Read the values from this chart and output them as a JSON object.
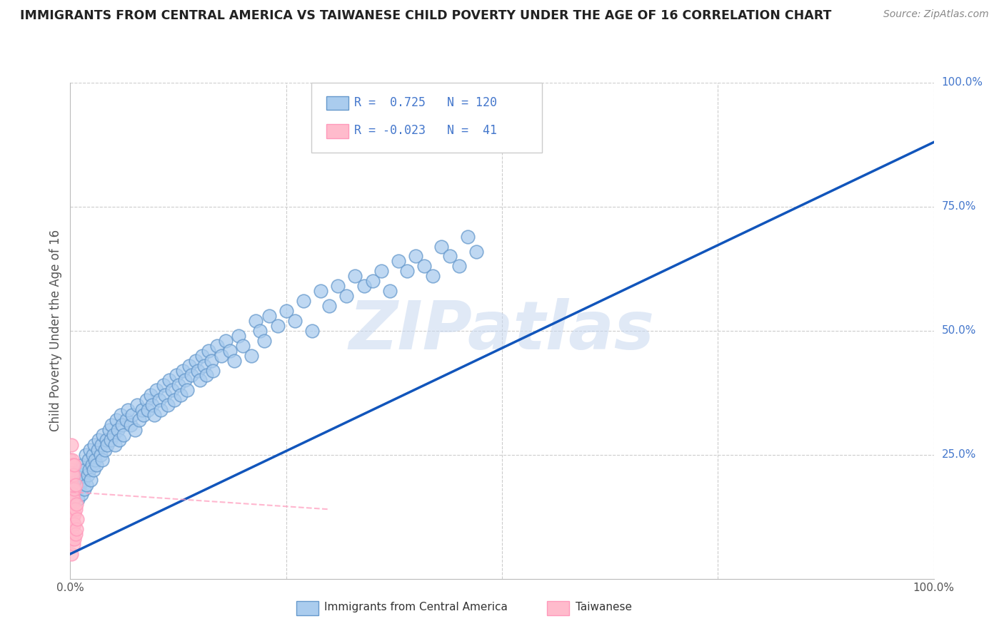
{
  "title": "IMMIGRANTS FROM CENTRAL AMERICA VS TAIWANESE CHILD POVERTY UNDER THE AGE OF 16 CORRELATION CHART",
  "source": "Source: ZipAtlas.com",
  "ylabel": "Child Poverty Under the Age of 16",
  "watermark": "ZIPatlas",
  "blue_color": "#6699cc",
  "pink_color": "#ff99bb",
  "blue_fill": "#aaccee",
  "pink_fill": "#ffbbcc",
  "blue_line_color": "#1155bb",
  "pink_line_color": "#ff99bb",
  "tick_label_color": "#4477cc",
  "background_color": "#ffffff",
  "grid_color": "#cccccc",
  "blue_scatter": {
    "x": [
      0.005,
      0.007,
      0.009,
      0.01,
      0.011,
      0.012,
      0.013,
      0.014,
      0.015,
      0.016,
      0.017,
      0.018,
      0.019,
      0.02,
      0.021,
      0.022,
      0.023,
      0.024,
      0.025,
      0.026,
      0.027,
      0.028,
      0.029,
      0.03,
      0.032,
      0.033,
      0.035,
      0.036,
      0.037,
      0.038,
      0.04,
      0.042,
      0.043,
      0.045,
      0.047,
      0.048,
      0.05,
      0.052,
      0.053,
      0.055,
      0.057,
      0.058,
      0.06,
      0.062,
      0.065,
      0.067,
      0.07,
      0.072,
      0.075,
      0.077,
      0.08,
      0.083,
      0.085,
      0.088,
      0.09,
      0.093,
      0.095,
      0.097,
      0.1,
      0.103,
      0.105,
      0.108,
      0.11,
      0.113,
      0.115,
      0.118,
      0.12,
      0.123,
      0.125,
      0.128,
      0.13,
      0.133,
      0.135,
      0.138,
      0.14,
      0.145,
      0.148,
      0.15,
      0.153,
      0.155,
      0.158,
      0.16,
      0.163,
      0.165,
      0.17,
      0.175,
      0.18,
      0.185,
      0.19,
      0.195,
      0.2,
      0.21,
      0.215,
      0.22,
      0.225,
      0.23,
      0.24,
      0.25,
      0.26,
      0.27,
      0.28,
      0.29,
      0.3,
      0.31,
      0.32,
      0.33,
      0.34,
      0.35,
      0.36,
      0.37,
      0.38,
      0.39,
      0.4,
      0.41,
      0.42,
      0.43,
      0.44,
      0.45,
      0.46,
      0.47
    ],
    "y": [
      0.18,
      0.2,
      0.16,
      0.22,
      0.19,
      0.21,
      0.17,
      0.23,
      0.2,
      0.18,
      0.22,
      0.25,
      0.19,
      0.21,
      0.24,
      0.22,
      0.26,
      0.2,
      0.23,
      0.25,
      0.22,
      0.27,
      0.24,
      0.23,
      0.26,
      0.28,
      0.25,
      0.27,
      0.24,
      0.29,
      0.26,
      0.28,
      0.27,
      0.3,
      0.28,
      0.31,
      0.29,
      0.27,
      0.32,
      0.3,
      0.28,
      0.33,
      0.31,
      0.29,
      0.32,
      0.34,
      0.31,
      0.33,
      0.3,
      0.35,
      0.32,
      0.34,
      0.33,
      0.36,
      0.34,
      0.37,
      0.35,
      0.33,
      0.38,
      0.36,
      0.34,
      0.39,
      0.37,
      0.35,
      0.4,
      0.38,
      0.36,
      0.41,
      0.39,
      0.37,
      0.42,
      0.4,
      0.38,
      0.43,
      0.41,
      0.44,
      0.42,
      0.4,
      0.45,
      0.43,
      0.41,
      0.46,
      0.44,
      0.42,
      0.47,
      0.45,
      0.48,
      0.46,
      0.44,
      0.49,
      0.47,
      0.45,
      0.52,
      0.5,
      0.48,
      0.53,
      0.51,
      0.54,
      0.52,
      0.56,
      0.5,
      0.58,
      0.55,
      0.59,
      0.57,
      0.61,
      0.59,
      0.6,
      0.62,
      0.58,
      0.64,
      0.62,
      0.65,
      0.63,
      0.61,
      0.67,
      0.65,
      0.63,
      0.69,
      0.66
    ]
  },
  "pink_scatter": {
    "x": [
      0.0,
      0.0,
      0.0,
      0.0,
      0.0,
      0.001,
      0.001,
      0.001,
      0.001,
      0.001,
      0.001,
      0.001,
      0.002,
      0.002,
      0.002,
      0.002,
      0.002,
      0.002,
      0.002,
      0.003,
      0.003,
      0.003,
      0.003,
      0.003,
      0.003,
      0.004,
      0.004,
      0.004,
      0.004,
      0.004,
      0.005,
      0.005,
      0.005,
      0.005,
      0.005,
      0.006,
      0.006,
      0.006,
      0.007,
      0.007,
      0.008
    ],
    "y": [
      0.1,
      0.15,
      0.2,
      0.24,
      0.08,
      0.05,
      0.12,
      0.17,
      0.22,
      0.27,
      0.13,
      0.18,
      0.08,
      0.14,
      0.19,
      0.24,
      0.1,
      0.16,
      0.21,
      0.09,
      0.13,
      0.18,
      0.23,
      0.12,
      0.17,
      0.07,
      0.11,
      0.16,
      0.21,
      0.14,
      0.08,
      0.13,
      0.18,
      0.23,
      0.11,
      0.09,
      0.14,
      0.19,
      0.1,
      0.15,
      0.12
    ]
  },
  "blue_line": {
    "x0": 0.0,
    "y0": 0.05,
    "x1": 1.0,
    "y1": 0.88
  },
  "pink_line": {
    "x0": 0.0,
    "y0": 0.175,
    "x1": 0.3,
    "y1": 0.14
  },
  "xlim": [
    0.0,
    1.0
  ],
  "ylim": [
    0.0,
    1.0
  ],
  "x_ticks": [
    0.0,
    0.5,
    1.0
  ],
  "x_tick_labels": [
    "0.0%",
    "",
    "100.0%"
  ],
  "y_ticks_right": [
    0.25,
    0.5,
    0.75,
    1.0
  ],
  "y_tick_labels_right": [
    "25.0%",
    "50.0%",
    "75.0%",
    "100.0%"
  ]
}
